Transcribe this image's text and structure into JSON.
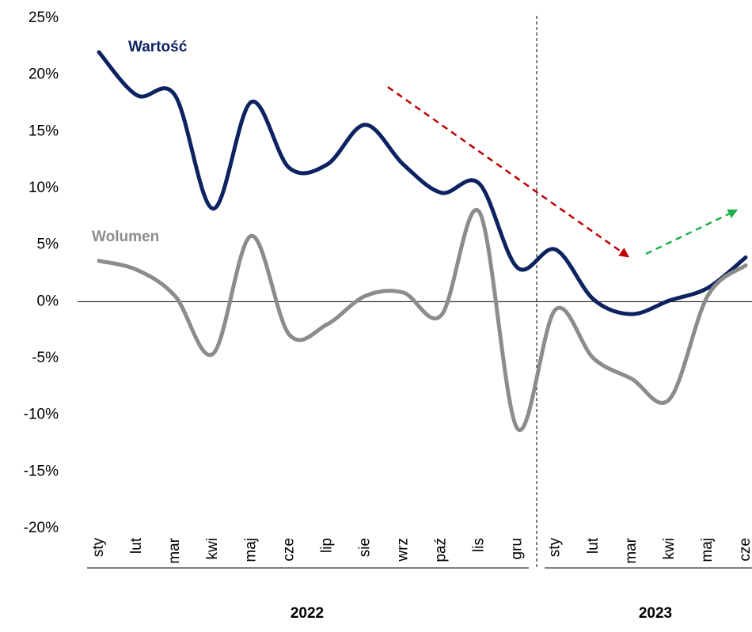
{
  "chart_data": {
    "type": "line",
    "categories": [
      "sty",
      "lut",
      "mar",
      "kwi",
      "maj",
      "cze",
      "lip",
      "sie",
      "wrz",
      "paź",
      "lis",
      "gru",
      "sty",
      "lut",
      "mar",
      "kwi",
      "maj",
      "cze"
    ],
    "year_labels": [
      "2022",
      "2023"
    ],
    "series": [
      {
        "name": "Wartość",
        "color": "#0d2260",
        "values": [
          22,
          18.2,
          18.2,
          8.2,
          17.6,
          11.8,
          12.1,
          15.6,
          12.1,
          9.6,
          10.4,
          3.0,
          4.6,
          0.2,
          -1.1,
          0.1,
          1.2,
          3.9
        ]
      },
      {
        "name": "Wolumen",
        "color": "#8c8c8c",
        "values": [
          3.6,
          2.8,
          0.5,
          -4.6,
          5.8,
          -2.9,
          -2.0,
          0.5,
          0.8,
          -1.2,
          7.9,
          -11.2,
          -0.7,
          -5.0,
          -6.8,
          -8.6,
          0.5,
          3.2
        ]
      }
    ],
    "ylim": [
      -20,
      25
    ],
    "yticks": [
      {
        "value": -20,
        "label": "-20%"
      },
      {
        "value": -15,
        "label": "-15%"
      },
      {
        "value": -10,
        "label": "-10%"
      },
      {
        "value": -5,
        "label": "-5%"
      },
      {
        "value": 0,
        "label": "0%"
      },
      {
        "value": 5,
        "label": "5%"
      },
      {
        "value": 10,
        "label": "10%"
      },
      {
        "value": 15,
        "label": "15%"
      },
      {
        "value": 20,
        "label": "20%"
      },
      {
        "value": 25,
        "label": "25%"
      }
    ],
    "grid": false
  }
}
